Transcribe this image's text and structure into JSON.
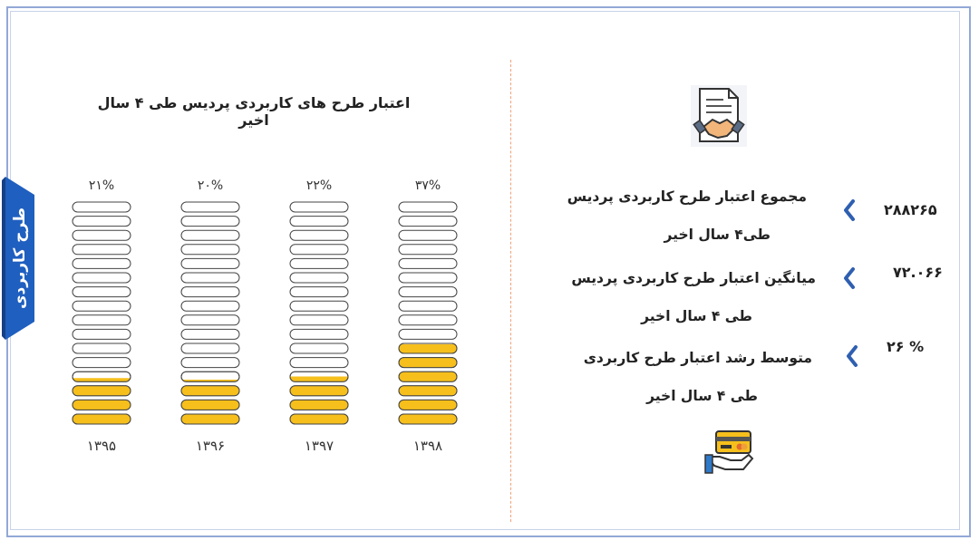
{
  "side_tab": {
    "label": "طرح کاربردی",
    "color": "#1f5fbf"
  },
  "chart_data": {
    "type": "bar",
    "title": "اعتبار طرح های  کاربردی پردیس طی ۴ سال اخیر",
    "categories": [
      "۱۳۹۵",
      "۱۳۹۶",
      "۱۳۹۷",
      "۱۳۹۸"
    ],
    "value_labels": [
      "۲۱%",
      "۲۰%",
      "۲۲%",
      "۳۷%"
    ],
    "values": [
      21,
      20,
      22,
      37
    ],
    "units": 16,
    "ylim": [
      0,
      100
    ],
    "fill_color": "#f6bf1c",
    "empty_color": "#ffffff"
  },
  "stats": [
    {
      "label_line1": "مجموع اعتبار طرح کاربردی  پردیس",
      "label_line2": "طی۴ سال اخیر",
      "value": "۲۸۸۲۶۵"
    },
    {
      "label_line1": "میانگین اعتبار  طرح کاربردی پردیس",
      "label_line2": "طی ۴ سال اخیر",
      "value": "۷۲.۰۶۶"
    },
    {
      "label_line1": "متوسط  رشد اعتبار  طرح کاربردی",
      "label_line2": "طی ۴ سال اخیر",
      "value": "%  ۲۶"
    }
  ],
  "icons": {
    "top": "document-handshake-icon",
    "bottom": "hand-card-icon"
  },
  "colors": {
    "accent": "#2f5fb0",
    "divider": "#f0a37a",
    "frame": "#93a9d6"
  }
}
